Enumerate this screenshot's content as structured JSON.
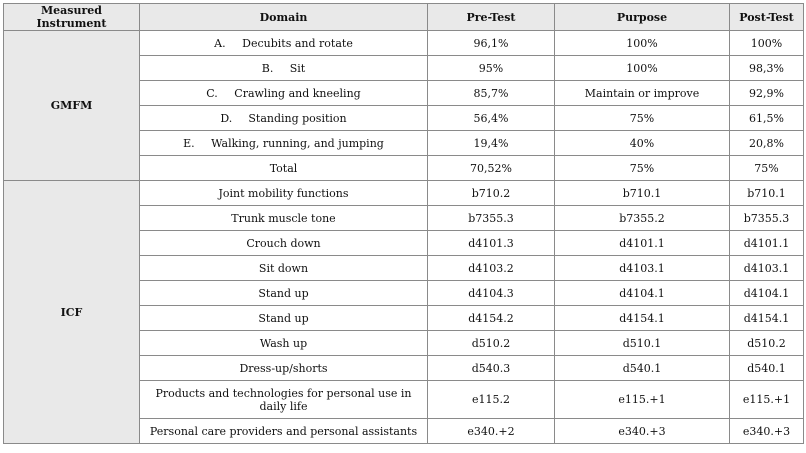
{
  "headers": [
    "Measured Instrument",
    "Domain",
    "Pre-Test",
    "Purpose",
    "Post-Test"
  ],
  "groups": [
    {
      "name": "GMFM",
      "rows": [
        {
          "letter": "A.",
          "domain": "Decubits and rotate",
          "pre": "96,1%",
          "purpose": "100%",
          "post": "100%"
        },
        {
          "letter": "B.",
          "domain": "Sit",
          "pre": "95%",
          "purpose": "100%",
          "post": "98,3%"
        },
        {
          "letter": "C.",
          "domain": "Crawling and kneeling",
          "pre": "85,7%",
          "purpose": "Maintain or improve",
          "post": "92,9%"
        },
        {
          "letter": "D.",
          "domain": "Standing position",
          "pre": "56,4%",
          "purpose": "75%",
          "post": "61,5%"
        },
        {
          "letter": "E.",
          "domain": "Walking, running, and jumping",
          "pre": "19,4%",
          "purpose": "40%",
          "post": "20,8%"
        },
        {
          "letter": "",
          "domain": "Total",
          "pre": "70,52%",
          "purpose": "75%",
          "post": "75%"
        }
      ]
    },
    {
      "name": "ICF",
      "rows": [
        {
          "domain": "Joint mobility functions",
          "pre": "b710.2",
          "purpose": "b710.1",
          "post": "b710.1"
        },
        {
          "domain": "Trunk muscle tone",
          "pre": "b7355.3",
          "purpose": "b7355.2",
          "post": "b7355.3"
        },
        {
          "domain": "Crouch down",
          "pre": "d4101.3",
          "purpose": "d4101.1",
          "post": "d4101.1"
        },
        {
          "domain": "Sit down",
          "pre": "d4103.2",
          "purpose": "d4103.1",
          "post": "d4103.1"
        },
        {
          "domain": "Stand up",
          "pre": "d4104.3",
          "purpose": "d4104.1",
          "post": "d4104.1"
        },
        {
          "domain": "Stand up",
          "pre": "d4154.2",
          "purpose": "d4154.1",
          "post": "d4154.1"
        },
        {
          "domain": "Wash up",
          "pre": "d510.2",
          "purpose": "d510.1",
          "post": "d510.2"
        },
        {
          "domain": "Dress-up/shorts",
          "pre": "d540.3",
          "purpose": "d540.1",
          "post": "d540.1"
        },
        {
          "domain": "Products and technologies for personal use in daily life",
          "pre": "e115.2",
          "purpose": "e115.+1",
          "post": "e115.+1"
        },
        {
          "domain": "Personal care providers and personal assistants",
          "pre": "e340.+2",
          "purpose": "e340.+3",
          "post": "e340.+3"
        }
      ]
    }
  ]
}
